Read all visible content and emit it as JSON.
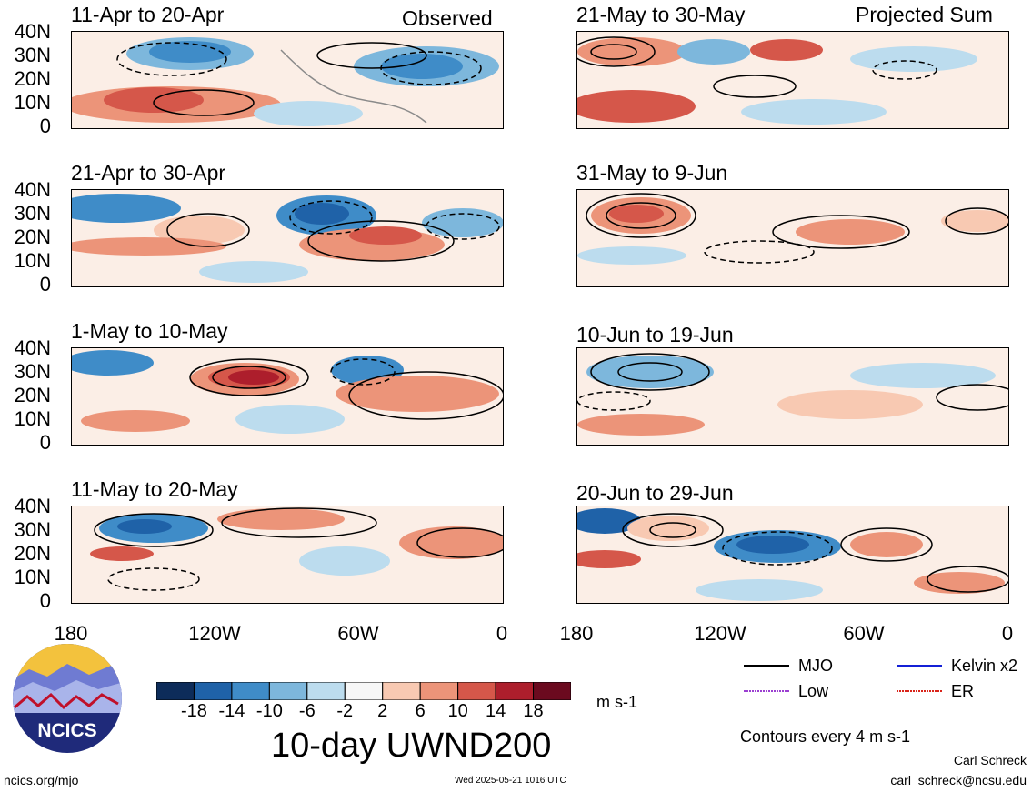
{
  "header": {
    "left_label": "Observed",
    "right_label": "Projected Sum"
  },
  "panels_left": [
    {
      "title": "11-Apr to 20-Apr"
    },
    {
      "title": "21-Apr to 30-Apr"
    },
    {
      "title": "1-May to 10-May"
    },
    {
      "title": "11-May to 20-May"
    }
  ],
  "panels_right": [
    {
      "title": "21-May to 30-May"
    },
    {
      "title": "31-May to 9-Jun"
    },
    {
      "title": "10-Jun to 19-Jun"
    },
    {
      "title": "20-Jun to 29-Jun"
    }
  ],
  "lat_labels": [
    "40N",
    "30N",
    "20N",
    "10N",
    "0"
  ],
  "lon_labels": [
    "180",
    "120W",
    "60W",
    "0"
  ],
  "colorbar": {
    "labels": [
      "-18",
      "-14",
      "-10",
      "-6",
      "-2",
      "2",
      "6",
      "10",
      "14",
      "18"
    ],
    "colors": [
      "#0d2c5a",
      "#1f62a8",
      "#3f8cc8",
      "#7db7dc",
      "#bcdcee",
      "#f7f7f7",
      "#f8c9b2",
      "#ec9479",
      "#d5574a",
      "#ad1e2c",
      "#6b0a1f"
    ],
    "units": "m s-1"
  },
  "title": "10-day UWND200",
  "legend": {
    "items": [
      {
        "label": "MJO",
        "color": "#000000"
      },
      {
        "label": "Kelvin x2",
        "color": "#1420d6"
      },
      {
        "label": "Low",
        "color": "#9b3fd1"
      },
      {
        "label": "ER",
        "color": "#d9241a"
      }
    ],
    "note": "Contours every 4 m s-1"
  },
  "logo": {
    "text": "NCICS"
  },
  "footer": {
    "url": "ncics.org/mjo",
    "timestamp": "Wed 2025-05-21 1016 UTC",
    "author": "Carl Schreck",
    "email": "carl_schreck@ncsu.edu"
  }
}
